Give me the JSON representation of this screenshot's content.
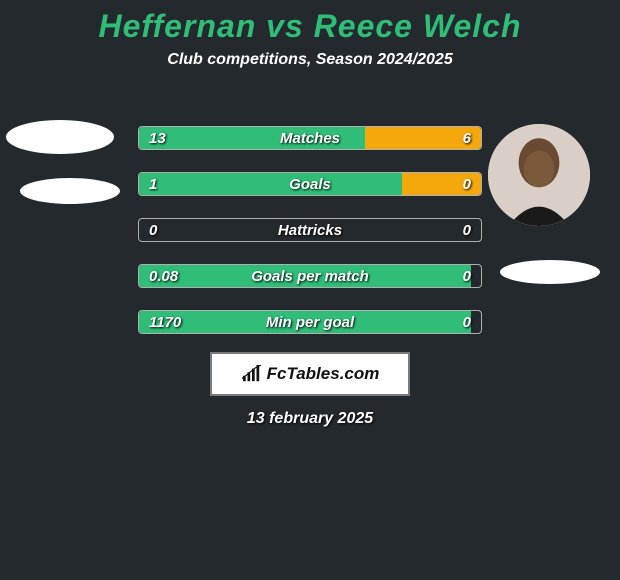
{
  "background_color": "#24292d",
  "text_color": "#ffffff",
  "title": {
    "text": "Heffernan vs Reece Welch",
    "color": "#2fbd78",
    "fontsize": 32
  },
  "subtitle": {
    "text": "Club competitions, Season 2024/2025",
    "fontsize": 16
  },
  "left_color": "#2fbd78",
  "right_color": "#f4a80b",
  "bar_border_color": "#b0b0b0",
  "label_fontsize": 15,
  "value_fontsize": 15,
  "stats": [
    {
      "label": "Matches",
      "left_value": "13",
      "right_value": "6",
      "left_pct": 66,
      "right_pct": 34
    },
    {
      "label": "Goals",
      "left_value": "1",
      "right_value": "0",
      "left_pct": 77,
      "right_pct": 23
    },
    {
      "label": "Hattricks",
      "left_value": "0",
      "right_value": "0",
      "left_pct": 0,
      "right_pct": 0
    },
    {
      "label": "Goals per match",
      "left_value": "0.08",
      "right_value": "0",
      "left_pct": 97,
      "right_pct": 0
    },
    {
      "label": "Min per goal",
      "left_value": "1170",
      "right_value": "0",
      "left_pct": 97,
      "right_pct": 0
    }
  ],
  "brand": {
    "text": "FcTables.com",
    "border_color": "#7a7a7a"
  },
  "date": {
    "text": "13 february 2025",
    "fontsize": 16
  },
  "avatar_bg": "#fefefe"
}
